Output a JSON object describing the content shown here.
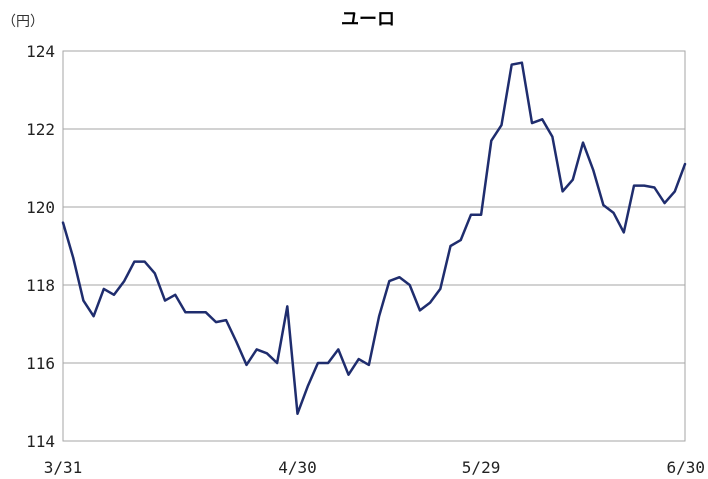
{
  "chart_data": {
    "type": "line",
    "title": "ユーロ",
    "ylabel": "（円）",
    "xlabel": "",
    "ylim": [
      114,
      124
    ],
    "yticks": [
      114,
      116,
      118,
      120,
      122,
      124
    ],
    "xtick_labels": [
      {
        "label": "3/31",
        "index": 0
      },
      {
        "label": "4/30",
        "index": 23
      },
      {
        "label": "5/29",
        "index": 41
      },
      {
        "label": "6/30",
        "index": 62
      }
    ],
    "grid": true,
    "series": [
      {
        "color": "#1f2d6e",
        "values": [
          119.6,
          118.7,
          117.6,
          117.2,
          117.9,
          117.75,
          118.1,
          118.6,
          118.6,
          118.3,
          117.6,
          117.75,
          117.3,
          117.3,
          117.3,
          117.05,
          117.1,
          116.55,
          115.95,
          116.35,
          116.25,
          116.0,
          117.45,
          114.7,
          115.4,
          116.0,
          116.0,
          116.35,
          115.7,
          116.1,
          115.95,
          117.2,
          118.1,
          118.2,
          118.0,
          117.35,
          117.55,
          117.9,
          119.0,
          119.15,
          119.8,
          119.8,
          121.7,
          122.1,
          123.65,
          123.7,
          122.15,
          122.25,
          121.8,
          120.4,
          120.7,
          121.65,
          120.95,
          120.05,
          119.85,
          119.35,
          120.55,
          120.55,
          120.5,
          120.1,
          120.4,
          121.1
        ]
      }
    ]
  }
}
